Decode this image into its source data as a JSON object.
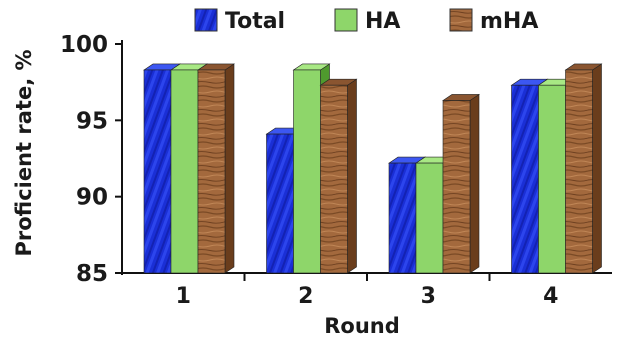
{
  "chart_data": {
    "type": "bar",
    "categories": [
      "1",
      "2",
      "3",
      "4"
    ],
    "series": [
      {
        "name": "Total",
        "values": [
          98.3,
          94.1,
          92.2,
          97.3
        ],
        "color": "#1a2fd6"
      },
      {
        "name": "HA",
        "values": [
          98.3,
          98.3,
          92.2,
          97.3
        ],
        "color": "#8ed66a"
      },
      {
        "name": "mHA",
        "values": [
          98.3,
          97.3,
          96.3,
          98.3
        ],
        "color": "#a3693d"
      }
    ],
    "xlabel": "Round",
    "ylabel": "Proficient rate, %",
    "ylim": [
      85,
      100
    ],
    "yticks": [
      85,
      90,
      95,
      100
    ],
    "grid": false,
    "legend": "top"
  }
}
